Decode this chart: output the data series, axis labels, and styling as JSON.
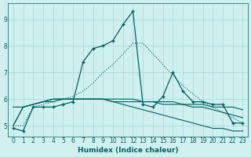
{
  "xlabel": "Humidex (Indice chaleur)",
  "x": [
    0,
    1,
    2,
    3,
    4,
    5,
    6,
    7,
    8,
    9,
    10,
    11,
    12,
    13,
    14,
    15,
    16,
    17,
    18,
    19,
    20,
    21,
    22,
    23
  ],
  "series_main": [
    4.9,
    4.8,
    5.7,
    5.7,
    5.7,
    5.8,
    5.9,
    7.4,
    7.9,
    8.0,
    8.2,
    8.8,
    9.3,
    5.8,
    5.7,
    6.1,
    7.0,
    6.3,
    5.9,
    5.9,
    5.8,
    5.8,
    5.1,
    5.1
  ],
  "series_dotted": [
    5.0,
    5.0,
    5.7,
    5.8,
    5.9,
    6.0,
    6.1,
    6.3,
    6.6,
    7.0,
    7.3,
    7.7,
    8.1,
    8.1,
    7.7,
    7.3,
    6.9,
    6.5,
    6.2,
    5.9,
    5.7,
    5.5,
    5.3,
    5.1
  ],
  "series_flat1": [
    5.0,
    5.7,
    5.8,
    5.9,
    6.0,
    6.0,
    6.0,
    6.0,
    6.0,
    6.0,
    6.0,
    6.0,
    6.0,
    5.9,
    5.9,
    5.8,
    5.8,
    5.8,
    5.7,
    5.7,
    5.6,
    5.5,
    5.4,
    5.3
  ],
  "series_flat2": [
    5.0,
    5.7,
    5.8,
    5.9,
    6.0,
    6.0,
    6.0,
    6.0,
    6.0,
    6.0,
    5.9,
    5.8,
    5.7,
    5.6,
    5.5,
    5.4,
    5.3,
    5.2,
    5.1,
    5.0,
    4.9,
    4.9,
    4.8,
    4.8
  ],
  "series_flat3": [
    5.7,
    5.7,
    5.8,
    5.9,
    5.9,
    6.0,
    6.0,
    6.0,
    6.0,
    6.0,
    5.9,
    5.9,
    5.9,
    5.9,
    5.9,
    5.9,
    5.9,
    5.8,
    5.8,
    5.8,
    5.7,
    5.7,
    5.7,
    5.6
  ],
  "line_color": "#006060",
  "bg_color": "#d0f0f0",
  "grid_color": "#a0d8d8",
  "ylim": [
    4.6,
    9.6
  ],
  "yticks": [
    5,
    6,
    7,
    8,
    9
  ],
  "xticks": [
    0,
    1,
    2,
    3,
    4,
    5,
    6,
    7,
    8,
    9,
    10,
    11,
    12,
    13,
    14,
    15,
    16,
    17,
    18,
    19,
    20,
    21,
    22,
    23
  ]
}
